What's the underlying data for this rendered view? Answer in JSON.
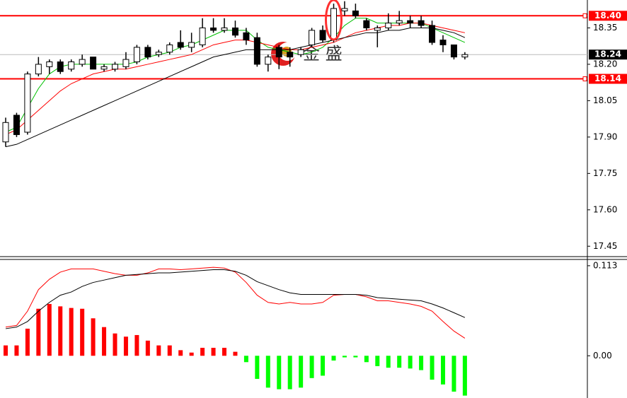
{
  "chart_data": [
    {
      "type": "candlestick",
      "open": [
        17.88,
        17.99,
        17.92,
        18.16,
        18.19,
        18.21,
        18.18,
        18.2,
        18.23,
        18.18,
        18.18,
        18.19,
        18.21,
        18.27,
        18.24,
        18.25,
        18.29,
        18.27,
        18.28,
        18.35,
        18.34,
        18.35,
        18.33,
        18.31,
        18.2,
        18.27,
        18.25,
        18.24,
        18.28,
        18.34,
        18.3,
        18.42,
        18.42,
        18.38,
        18.34,
        18.35,
        18.37,
        18.38,
        18.38,
        18.36,
        18.3,
        18.28,
        18.23
      ],
      "high": [
        17.98,
        18.0,
        18.17,
        18.23,
        18.22,
        18.22,
        18.22,
        18.24,
        18.23,
        18.2,
        18.21,
        18.25,
        18.28,
        18.28,
        18.26,
        18.29,
        18.34,
        18.33,
        18.39,
        18.39,
        18.39,
        18.38,
        18.35,
        18.33,
        18.24,
        18.28,
        18.27,
        18.27,
        18.35,
        18.36,
        18.45,
        18.46,
        18.45,
        18.39,
        18.36,
        18.41,
        18.42,
        18.4,
        18.4,
        18.38,
        18.32,
        18.28,
        18.25
      ],
      "low": [
        17.86,
        17.9,
        17.91,
        18.15,
        18.16,
        18.16,
        18.17,
        18.19,
        18.18,
        18.17,
        18.17,
        18.18,
        18.2,
        18.22,
        18.23,
        18.24,
        18.26,
        18.25,
        18.27,
        18.33,
        18.33,
        18.31,
        18.28,
        18.19,
        18.17,
        18.18,
        18.19,
        18.23,
        18.27,
        18.29,
        18.29,
        18.4,
        18.39,
        18.34,
        18.27,
        18.34,
        18.36,
        18.35,
        18.35,
        18.28,
        18.25,
        18.22,
        18.22
      ],
      "close": [
        17.96,
        17.91,
        18.16,
        18.2,
        18.21,
        18.17,
        18.21,
        18.22,
        18.18,
        18.19,
        18.2,
        18.22,
        18.27,
        18.23,
        18.25,
        18.28,
        18.27,
        18.29,
        18.35,
        18.34,
        18.35,
        18.32,
        18.3,
        18.2,
        18.23,
        18.23,
        18.23,
        18.26,
        18.34,
        18.3,
        18.43,
        18.43,
        18.4,
        18.35,
        18.35,
        18.37,
        18.38,
        18.37,
        18.36,
        18.29,
        18.28,
        18.23,
        18.24
      ],
      "up_color": "#ffffff",
      "down_color": "#000000",
      "series": [
        {
          "color": "#00c000",
          "values": [
            17.92,
            17.94,
            18.02,
            18.1,
            18.16,
            18.19,
            18.2,
            18.2,
            18.2,
            18.2,
            18.2,
            18.2,
            18.21,
            18.23,
            18.24,
            18.25,
            18.27,
            18.28,
            18.3,
            18.32,
            18.34,
            18.34,
            18.34,
            18.3,
            18.27,
            18.26,
            18.25,
            18.24,
            18.25,
            18.27,
            18.31,
            18.36,
            18.39,
            18.39,
            18.37,
            18.37,
            18.37,
            18.37,
            18.37,
            18.35,
            18.33,
            18.31,
            18.29
          ]
        },
        {
          "color": "#ff0000",
          "values": [
            17.91,
            17.93,
            17.97,
            18.01,
            18.05,
            18.09,
            18.12,
            18.14,
            18.16,
            18.17,
            18.18,
            18.18,
            18.19,
            18.2,
            18.21,
            18.22,
            18.23,
            18.24,
            18.26,
            18.28,
            18.29,
            18.3,
            18.3,
            18.29,
            18.28,
            18.27,
            18.26,
            18.26,
            18.27,
            18.28,
            18.29,
            18.31,
            18.33,
            18.34,
            18.35,
            18.36,
            18.36,
            18.37,
            18.37,
            18.36,
            18.35,
            18.34,
            18.33
          ]
        },
        {
          "color": "#000000",
          "values": [
            17.86,
            17.87,
            17.89,
            17.91,
            17.93,
            17.95,
            17.97,
            17.99,
            18.01,
            18.03,
            18.05,
            18.07,
            18.09,
            18.11,
            18.13,
            18.15,
            18.17,
            18.19,
            18.21,
            18.23,
            18.24,
            18.25,
            18.26,
            18.26,
            18.26,
            18.26,
            18.26,
            18.27,
            18.28,
            18.29,
            18.3,
            18.31,
            18.32,
            18.33,
            18.33,
            18.34,
            18.34,
            18.35,
            18.35,
            18.35,
            18.34,
            18.33,
            18.31
          ]
        }
      ],
      "ylim": [
        17.41,
        18.465
      ],
      "yticks": [
        18.35,
        {
          "value": 18.2,
          "label": "18.20"
        },
        18.05,
        {
          "value": 17.9,
          "label": "17.90"
        },
        17.75,
        {
          "value": 17.6,
          "label": "17.60"
        },
        17.45
      ],
      "levels": [
        {
          "value": 18.4,
          "label": "18.40",
          "color": "#ff0000"
        },
        {
          "value": 18.14,
          "label": "18.14",
          "color": "#ff0000"
        },
        {
          "value": 18.24,
          "label": "18.24",
          "color": "#000000"
        }
      ],
      "annotation": "金 盛"
    },
    {
      "type": "macd",
      "values": [
        0.013,
        0.013,
        0.034,
        0.059,
        0.065,
        0.062,
        0.06,
        0.059,
        0.047,
        0.036,
        0.028,
        0.024,
        0.026,
        0.019,
        0.013,
        0.013,
        0.007,
        0.004,
        0.01,
        0.01,
        0.01,
        0.005,
        -0.008,
        -0.029,
        -0.04,
        -0.042,
        -0.042,
        -0.04,
        -0.028,
        -0.025,
        -0.006,
        -0.002,
        -0.002,
        -0.008,
        -0.013,
        -0.015,
        -0.015,
        -0.016,
        -0.018,
        -0.03,
        -0.036,
        -0.045,
        -0.05
      ],
      "positive_color": "#ff0000",
      "negative_color": "#00ff00",
      "series": [
        {
          "color": "#ff0000",
          "values": [
            0.036,
            0.038,
            0.056,
            0.083,
            0.096,
            0.105,
            0.109,
            0.109,
            0.109,
            0.106,
            0.103,
            0.101,
            0.101,
            0.104,
            0.109,
            0.109,
            0.108,
            0.109,
            0.11,
            0.111,
            0.11,
            0.105,
            0.092,
            0.076,
            0.067,
            0.065,
            0.067,
            0.065,
            0.065,
            0.067,
            0.076,
            0.077,
            0.077,
            0.074,
            0.069,
            0.069,
            0.067,
            0.065,
            0.062,
            0.056,
            0.043,
            0.031,
            0.022
          ]
        },
        {
          "color": "#000000",
          "values": [
            0.034,
            0.036,
            0.043,
            0.056,
            0.067,
            0.076,
            0.08,
            0.087,
            0.092,
            0.095,
            0.098,
            0.101,
            0.102,
            0.103,
            0.104,
            0.104,
            0.105,
            0.106,
            0.107,
            0.108,
            0.108,
            0.106,
            0.101,
            0.093,
            0.088,
            0.083,
            0.079,
            0.077,
            0.077,
            0.077,
            0.077,
            0.077,
            0.077,
            0.076,
            0.073,
            0.072,
            0.071,
            0.07,
            0.069,
            0.065,
            0.06,
            0.054,
            0.048
          ]
        }
      ],
      "ylim": [
        -0.053,
        0.12
      ],
      "yticks": [
        0.113,
        {
          "value": 0,
          "label": "0.00"
        }
      ]
    }
  ]
}
